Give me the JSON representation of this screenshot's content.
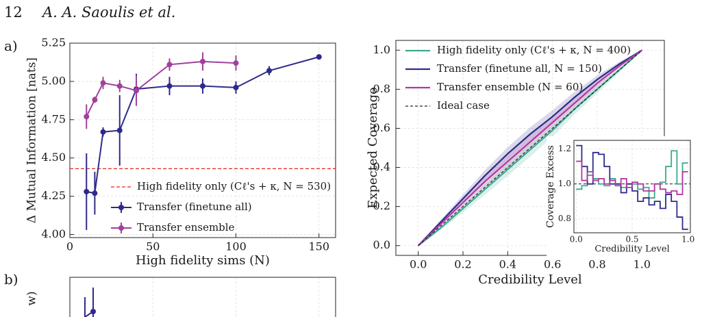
{
  "header": {
    "page_number": "12",
    "authors": "A. A. Saoulis et al."
  },
  "panel_labels": {
    "a": "a)",
    "b": "b)"
  },
  "chart_data": [
    {
      "type": "line",
      "title": "",
      "xlabel": "High fidelity sims (N)",
      "ylabel": "Δ Mutual Information [nats]",
      "xlim": [
        0,
        160
      ],
      "ylim": [
        3.98,
        5.25
      ],
      "xticks": [
        0,
        50,
        100,
        150
      ],
      "yticks": [
        4.0,
        4.25,
        4.5,
        4.75,
        5.0,
        5.25
      ],
      "grid": true,
      "legend": "bottom-right",
      "baseline": {
        "name": "High fidelity only (Cℓ's + κ, N = 530)",
        "value": 4.43,
        "color": "#e8231e"
      },
      "series": [
        {
          "name": "Transfer (finetune all)",
          "color": "#2e2a8a",
          "x": [
            10,
            15,
            20,
            30,
            40,
            60,
            80,
            100,
            120,
            150
          ],
          "y": [
            4.28,
            4.27,
            4.67,
            4.68,
            4.95,
            4.97,
            4.97,
            4.96,
            5.07,
            5.16
          ],
          "err": [
            0.25,
            0.14,
            0.03,
            0.23,
            0.1,
            0.06,
            0.05,
            0.04,
            0.03,
            0.01
          ]
        },
        {
          "name": "Transfer ensemble",
          "color": "#a0409c",
          "x": [
            10,
            15,
            20,
            30,
            40,
            60,
            80,
            100
          ],
          "y": [
            4.77,
            4.88,
            4.99,
            4.97,
            4.94,
            5.11,
            5.13,
            5.12
          ],
          "err": [
            0.08,
            0.02,
            0.04,
            0.04,
            0.1,
            0.04,
            0.06,
            0.05
          ]
        }
      ]
    },
    {
      "type": "line",
      "title": "",
      "xlabel": "Credibility Level",
      "ylabel": "Expected Coverage",
      "xlim": [
        -0.1,
        1.1
      ],
      "ylim": [
        -0.05,
        1.05
      ],
      "xticks": [
        0.0,
        0.2,
        0.4,
        0.6,
        0.8,
        1.0
      ],
      "yticks": [
        0.0,
        0.2,
        0.4,
        0.6,
        0.8,
        1.0
      ],
      "grid": true,
      "legend": "top-left",
      "series": [
        {
          "name": "High fidelity only (Cℓ's + κ, N = 400)",
          "color": "#3aa98f",
          "x": [
            0,
            0.1,
            0.2,
            0.3,
            0.4,
            0.5,
            0.6,
            0.7,
            0.8,
            0.9,
            1.0
          ],
          "y": [
            0,
            0.09,
            0.19,
            0.29,
            0.39,
            0.49,
            0.59,
            0.7,
            0.8,
            0.9,
            1.0
          ]
        },
        {
          "name": "Transfer (finetune all, N = 150)",
          "color": "#2e2a8a",
          "x": [
            0,
            0.1,
            0.2,
            0.3,
            0.4,
            0.5,
            0.6,
            0.7,
            0.8,
            0.9,
            1.0
          ],
          "y": [
            0,
            0.12,
            0.24,
            0.36,
            0.47,
            0.57,
            0.66,
            0.76,
            0.85,
            0.93,
            1.0
          ]
        },
        {
          "name": "Transfer ensemble (N = 60)",
          "color": "#b0389f",
          "x": [
            0,
            0.1,
            0.2,
            0.3,
            0.4,
            0.5,
            0.6,
            0.7,
            0.8,
            0.9,
            1.0
          ],
          "y": [
            0,
            0.11,
            0.22,
            0.33,
            0.43,
            0.53,
            0.63,
            0.73,
            0.83,
            0.92,
            1.0
          ]
        },
        {
          "name": "Ideal case",
          "color": "#222222",
          "dashed": true,
          "x": [
            0,
            1.0
          ],
          "y": [
            0,
            1.0
          ]
        }
      ],
      "inset": {
        "xlabel": "Credibility Level",
        "ylabel": "Coverage Excess",
        "xlim": [
          -0.02,
          1.02
        ],
        "ylim": [
          0.72,
          1.25
        ],
        "xticks": [
          0.0,
          0.5,
          1.0
        ],
        "xtick_labels": [
          "0.0",
          "0.5",
          "1.0"
        ],
        "yticks": [
          0.8,
          1.0,
          1.2
        ],
        "ytick_labels": [
          "0.8",
          "1.0",
          "1.2"
        ],
        "bins": [
          0.025,
          0.075,
          0.125,
          0.175,
          0.225,
          0.275,
          0.325,
          0.375,
          0.425,
          0.475,
          0.525,
          0.575,
          0.625,
          0.675,
          0.725,
          0.775,
          0.825,
          0.875,
          0.925,
          0.975
        ],
        "series": [
          {
            "name": "High fidelity only",
            "color": "#3aa98f",
            "values": [
              0.97,
              0.99,
              1.05,
              1.03,
              1.0,
              0.99,
              1.03,
              1.0,
              0.98,
              1.0,
              1.0,
              0.97,
              0.98,
              0.92,
              1.0,
              1.01,
              1.1,
              1.19,
              1.0,
              1.12
            ]
          },
          {
            "name": "Transfer (finetune all)",
            "color": "#2e2a8a",
            "values": [
              1.22,
              1.1,
              1.0,
              1.18,
              1.17,
              1.1,
              1.0,
              1.0,
              0.95,
              1.0,
              0.96,
              0.9,
              0.92,
              0.88,
              0.9,
              0.86,
              0.94,
              0.9,
              0.81,
              0.74
            ]
          },
          {
            "name": "Transfer ensemble",
            "color": "#b0389f",
            "values": [
              1.13,
              1.02,
              1.07,
              1.02,
              1.03,
              1.0,
              1.02,
              0.99,
              1.03,
              0.98,
              1.01,
              1.0,
              0.96,
              0.96,
              1.0,
              0.97,
              0.95,
              0.96,
              0.94,
              1.07
            ]
          }
        ]
      }
    },
    {
      "type": "line",
      "partial": true,
      "ylabel": "w)",
      "series": [
        {
          "name": "Transfer (finetune all)",
          "color": "#2e2a8a"
        }
      ]
    }
  ]
}
